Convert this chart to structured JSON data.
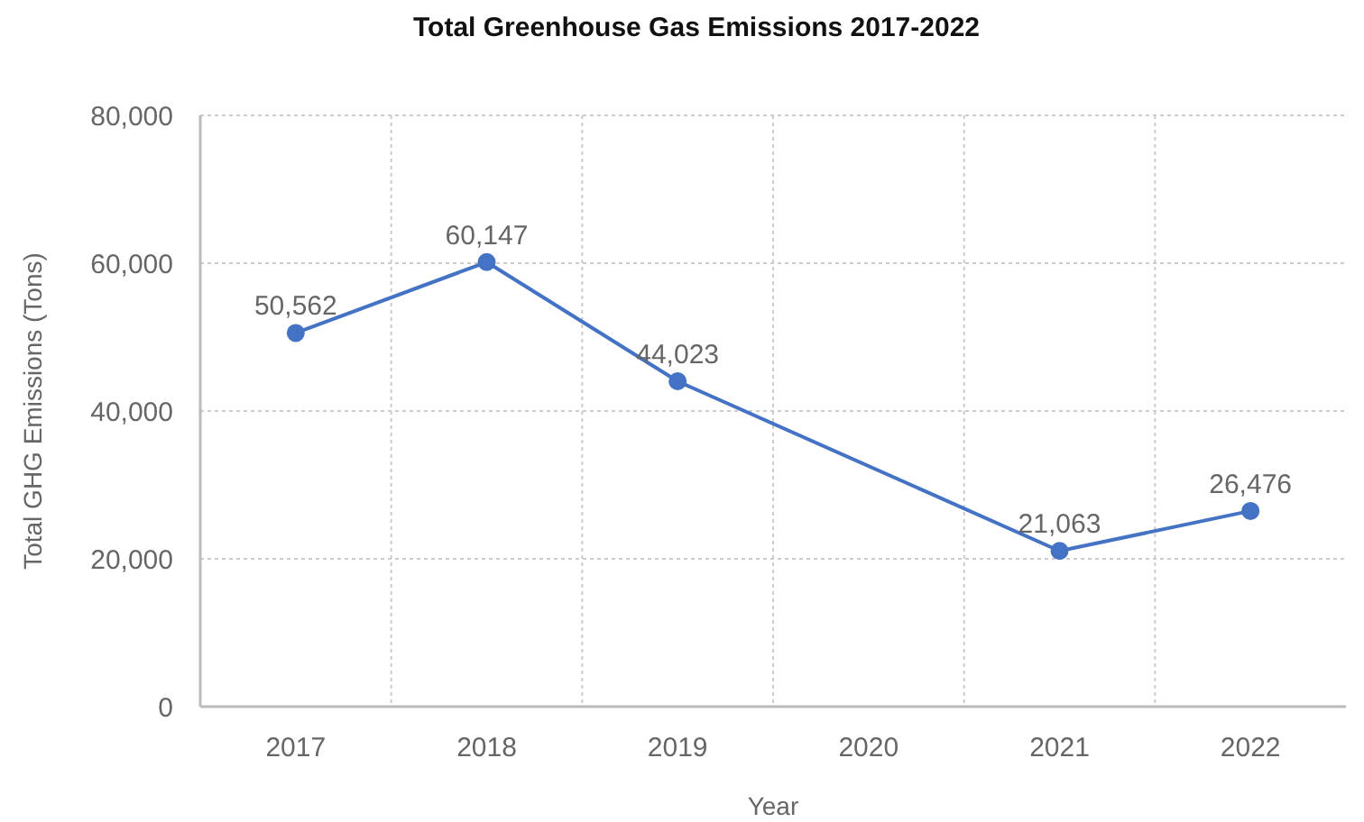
{
  "chart_data": {
    "type": "line",
    "title": "Total Greenhouse Gas Emissions 2017-2022",
    "xlabel": "Year",
    "ylabel": "Total GHG Emissions (Tons)",
    "categories": [
      "2017",
      "2018",
      "2019",
      "2020",
      "2021",
      "2022"
    ],
    "values": [
      50562,
      60147,
      44023,
      null,
      21063,
      26476
    ],
    "value_labels": [
      "50,562",
      "60,147",
      "44,023",
      null,
      "21,063",
      "26,476"
    ],
    "color": "#4472c4",
    "ylim": [
      0,
      80000
    ],
    "yticks": [
      0,
      {
        "value": 20000,
        "label": "20,000"
      },
      {
        "value": 40000,
        "label": "40,000"
      },
      {
        "value": 60000,
        "label": "60,000"
      },
      {
        "value": 80000,
        "label": "80,000"
      }
    ],
    "grid": true,
    "marker": "circle",
    "line_style": "solid"
  }
}
